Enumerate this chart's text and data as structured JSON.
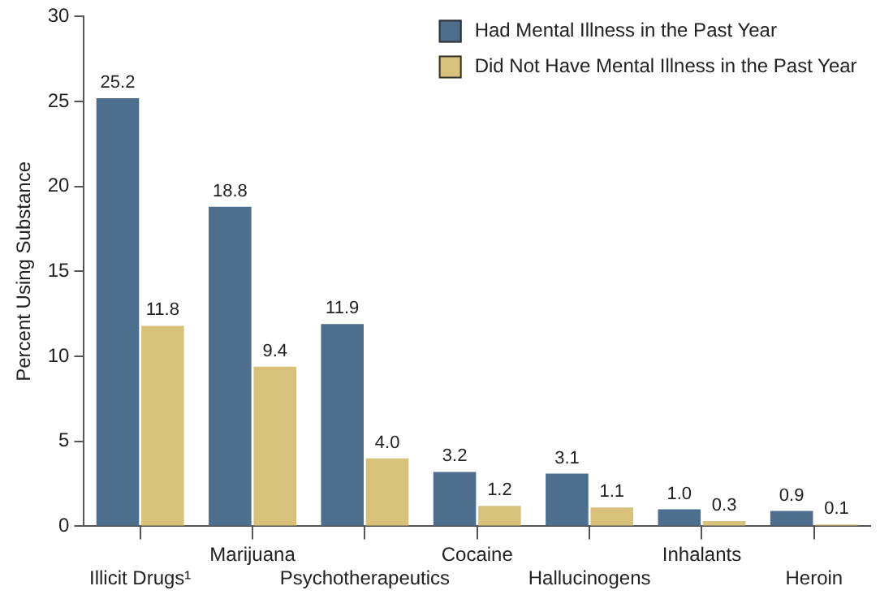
{
  "chart_data": {
    "type": "bar",
    "ylabel": "Percent Using Substance",
    "categories": [
      "Illicit Drugs¹",
      "Marijuana",
      "Psychotherapeutics",
      "Cocaine",
      "Hallucinogens",
      "Inhalants",
      "Heroin"
    ],
    "series": [
      {
        "name": "Had Mental Illness in the Past Year",
        "color": "#4e6e8e",
        "values": [
          25.2,
          18.8,
          11.9,
          3.2,
          3.1,
          1.0,
          0.9
        ],
        "value_labels": [
          "25.2",
          "18.8",
          "11.9",
          "3.2",
          "3.1",
          "1.0",
          "0.9"
        ]
      },
      {
        "name": "Did Not Have Mental Illness in the Past Year",
        "color": "#d8c17a",
        "values": [
          11.8,
          9.4,
          4.0,
          1.2,
          1.1,
          0.3,
          0.1
        ],
        "value_labels": [
          "11.8",
          "9.4",
          "4.0",
          "1.2",
          "1.1",
          "0.3",
          "0.1"
        ]
      }
    ],
    "ylim": [
      0,
      30
    ],
    "yticks": [
      0,
      5,
      10,
      15,
      20,
      25,
      30
    ],
    "grid": false,
    "legend": "top right"
  }
}
